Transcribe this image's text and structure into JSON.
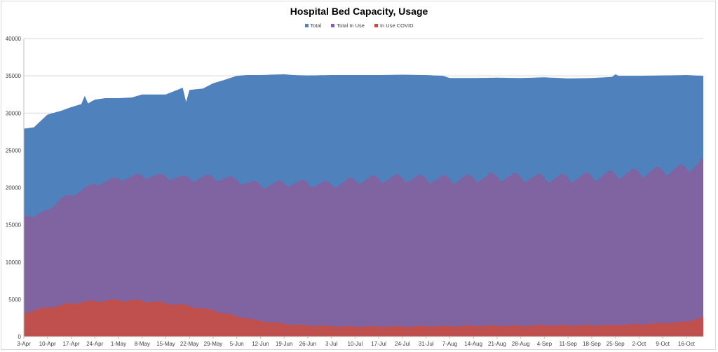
{
  "chart_data": {
    "type": "area",
    "title": "Hospital Bed Capacity, Usage",
    "xlabel": "",
    "ylabel": "",
    "ylim": [
      0,
      40000
    ],
    "y_ticks": [
      0,
      5000,
      10000,
      15000,
      20000,
      25000,
      30000,
      35000,
      40000
    ],
    "grid": "horizontal",
    "legend": "top-center",
    "x_start": "3-Apr",
    "x_end": "21-Oct",
    "x_tick_labels": [
      "3-Apr",
      "10-Apr",
      "17-Apr",
      "24-Apr",
      "1-May",
      "8-May",
      "15-May",
      "22-May",
      "29-May",
      "5-Jun",
      "12-Jun",
      "19-Jun",
      "26-Jun",
      "3-Jul",
      "10-Jul",
      "17-Jul",
      "24-Jul",
      "31-Jul",
      "7-Aug",
      "14-Aug",
      "21-Aug",
      "28-Aug",
      "4-Sep",
      "11-Sep",
      "18-Sep",
      "25-Sep",
      "2-Oct",
      "9-Oct",
      "16-Oct"
    ],
    "series": [
      {
        "name": "Total",
        "color": "#4f81bd",
        "points": [
          [
            "3-Apr",
            27900
          ],
          [
            "6-Apr",
            28100
          ],
          [
            "10-Apr",
            29800
          ],
          [
            "14-Apr",
            30300
          ],
          [
            "17-Apr",
            30800
          ],
          [
            "20-Apr",
            31200
          ],
          [
            "21-Apr",
            32300
          ],
          [
            "22-Apr",
            31300
          ],
          [
            "24-Apr",
            31800
          ],
          [
            "27-Apr",
            32000
          ],
          [
            "1-May",
            32000
          ],
          [
            "5-May",
            32100
          ],
          [
            "8-May",
            32500
          ],
          [
            "11-May",
            32500
          ],
          [
            "15-May",
            32500
          ],
          [
            "20-May",
            33400
          ],
          [
            "21-May",
            31500
          ],
          [
            "22-May",
            33100
          ],
          [
            "26-May",
            33300
          ],
          [
            "29-May",
            34000
          ],
          [
            "1-Jun",
            34400
          ],
          [
            "5-Jun",
            35000
          ],
          [
            "8-Jun",
            35100
          ],
          [
            "12-Jun",
            35100
          ],
          [
            "15-Jun",
            35150
          ],
          [
            "19-Jun",
            35200
          ],
          [
            "22-Jun",
            35100
          ],
          [
            "26-Jun",
            35050
          ],
          [
            "3-Jul",
            35100
          ],
          [
            "10-Jul",
            35100
          ],
          [
            "17-Jul",
            35100
          ],
          [
            "24-Jul",
            35150
          ],
          [
            "31-Jul",
            35100
          ],
          [
            "5-Aug",
            35000
          ],
          [
            "7-Aug",
            34700
          ],
          [
            "14-Aug",
            34700
          ],
          [
            "21-Aug",
            34750
          ],
          [
            "28-Aug",
            34700
          ],
          [
            "4-Sep",
            34800
          ],
          [
            "11-Sep",
            34650
          ],
          [
            "18-Sep",
            34700
          ],
          [
            "24-Sep",
            34850
          ],
          [
            "25-Sep",
            35200
          ],
          [
            "26-Sep",
            35000
          ],
          [
            "2-Oct",
            35000
          ],
          [
            "9-Oct",
            35050
          ],
          [
            "16-Oct",
            35100
          ],
          [
            "21-Oct",
            35000
          ]
        ]
      },
      {
        "name": "Total In Use",
        "color": "#8064a2",
        "weekly_pattern": [
          0.0,
          -0.7,
          -0.5,
          -0.1,
          0.2,
          0.6,
          0.5
        ],
        "amplitude": [
          [
            "3-Apr",
            200
          ],
          [
            "1-May",
            500
          ],
          [
            "5-Jun",
            700
          ],
          [
            "3-Jul",
            800
          ],
          [
            "7-Aug",
            900
          ],
          [
            "2-Oct",
            1000
          ],
          [
            "21-Oct",
            1000
          ]
        ],
        "baseline": [
          [
            "3-Apr",
            16400
          ],
          [
            "6-Apr",
            16100
          ],
          [
            "10-Apr",
            17000
          ],
          [
            "14-Apr",
            18500
          ],
          [
            "17-Apr",
            19000
          ],
          [
            "24-Apr",
            20500
          ],
          [
            "1-May",
            21200
          ],
          [
            "8-May",
            21600
          ],
          [
            "15-May",
            21500
          ],
          [
            "22-May",
            21200
          ],
          [
            "29-May",
            21400
          ],
          [
            "5-Jun",
            21000
          ],
          [
            "12-Jun",
            20300
          ],
          [
            "19-Jun",
            20600
          ],
          [
            "26-Jun",
            20600
          ],
          [
            "3-Jul",
            20400
          ],
          [
            "10-Jul",
            21000
          ],
          [
            "17-Jul",
            21200
          ],
          [
            "24-Jul",
            21300
          ],
          [
            "31-Jul",
            21200
          ],
          [
            "7-Aug",
            21100
          ],
          [
            "14-Aug",
            21300
          ],
          [
            "21-Aug",
            21500
          ],
          [
            "28-Aug",
            21400
          ],
          [
            "4-Sep",
            21300
          ],
          [
            "11-Sep",
            21300
          ],
          [
            "18-Sep",
            21500
          ],
          [
            "25-Sep",
            21800
          ],
          [
            "2-Oct",
            22000
          ],
          [
            "9-Oct",
            22300
          ],
          [
            "16-Oct",
            22600
          ],
          [
            "21-Oct",
            23500
          ]
        ]
      },
      {
        "name": "In Use COVID",
        "color": "#c0504d",
        "weekly_pattern": [
          0.0,
          -0.7,
          -0.5,
          -0.1,
          0.2,
          0.6,
          0.5
        ],
        "amplitude": [
          [
            "3-Apr",
            150
          ],
          [
            "8-May",
            250
          ],
          [
            "5-Jun",
            100
          ],
          [
            "21-Oct",
            80
          ]
        ],
        "baseline": [
          [
            "3-Apr",
            3200
          ],
          [
            "6-Apr",
            3500
          ],
          [
            "10-Apr",
            3900
          ],
          [
            "14-Apr",
            4200
          ],
          [
            "17-Apr",
            4500
          ],
          [
            "24-Apr",
            4750
          ],
          [
            "1-May",
            4900
          ],
          [
            "8-May",
            4800
          ],
          [
            "15-May",
            4500
          ],
          [
            "22-May",
            4100
          ],
          [
            "29-May",
            3500
          ],
          [
            "5-Jun",
            2700
          ],
          [
            "12-Jun",
            2100
          ],
          [
            "19-Jun",
            1700
          ],
          [
            "26-Jun",
            1500
          ],
          [
            "3-Jul",
            1400
          ],
          [
            "10-Jul",
            1350
          ],
          [
            "17-Jul",
            1350
          ],
          [
            "24-Jul",
            1350
          ],
          [
            "31-Jul",
            1400
          ],
          [
            "7-Aug",
            1400
          ],
          [
            "14-Aug",
            1450
          ],
          [
            "21-Aug",
            1450
          ],
          [
            "28-Aug",
            1450
          ],
          [
            "4-Sep",
            1500
          ],
          [
            "11-Sep",
            1500
          ],
          [
            "18-Sep",
            1500
          ],
          [
            "25-Sep",
            1550
          ],
          [
            "2-Oct",
            1650
          ],
          [
            "9-Oct",
            1800
          ],
          [
            "16-Oct",
            2000
          ],
          [
            "21-Oct",
            2600
          ]
        ]
      }
    ]
  }
}
